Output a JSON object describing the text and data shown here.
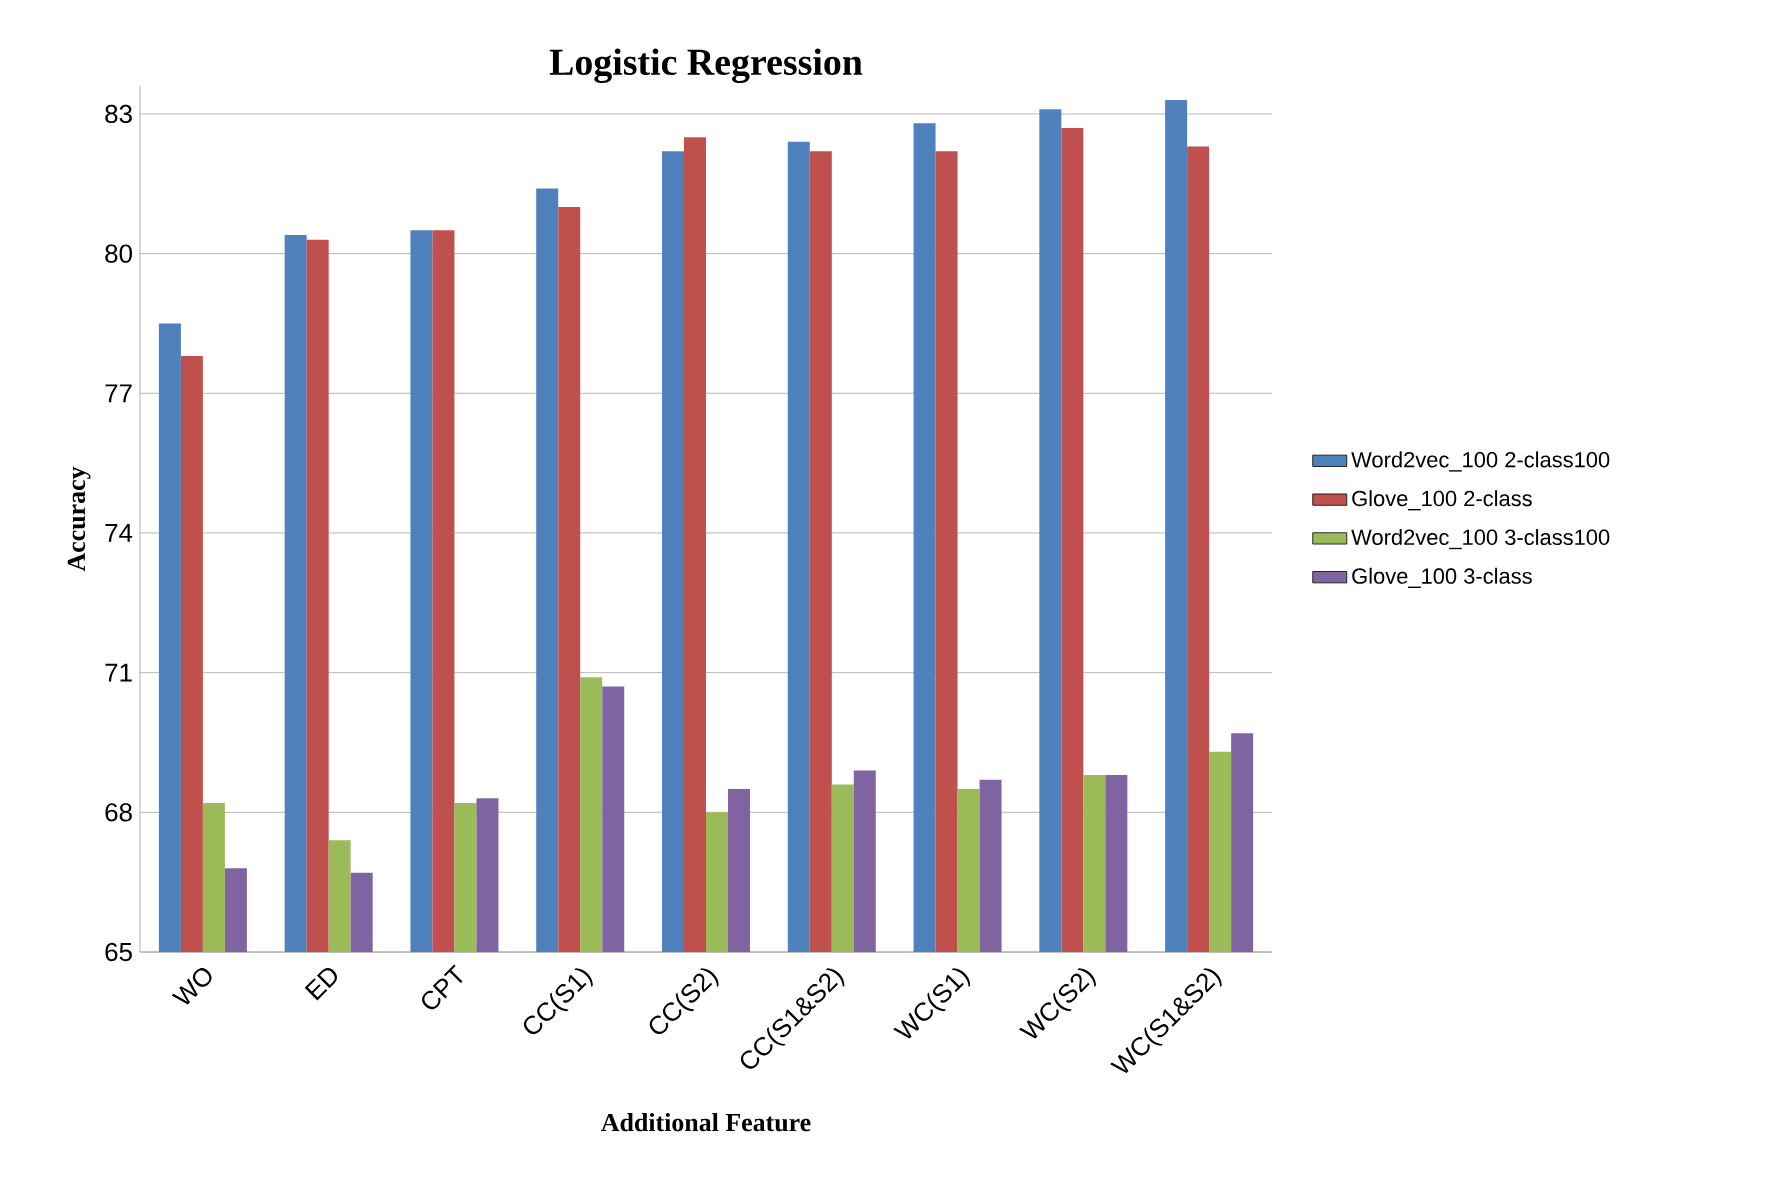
{
  "chart_data": {
    "type": "bar",
    "title": "Logistic Regression",
    "xlabel": "Additional Feature",
    "ylabel": "Accuracy",
    "categories": [
      "WO",
      "ED",
      "CPT",
      "CC(S1)",
      "CC(S2)",
      "CC(S1&S2)",
      "WC(S1)",
      "WC(S2)",
      "WC(S1&S2)"
    ],
    "series": [
      {
        "name": "Word2vec_100 2-class100",
        "color": "#4f81bd",
        "values": [
          78.5,
          80.4,
          80.5,
          81.4,
          82.2,
          82.4,
          82.8,
          83.1,
          83.3
        ]
      },
      {
        "name": "Glove_100 2-class",
        "color": "#c0504d",
        "values": [
          77.8,
          80.3,
          80.5,
          81.0,
          82.5,
          82.2,
          82.2,
          82.7,
          82.3
        ]
      },
      {
        "name": "Word2vec_100 3-class100",
        "color": "#9bbb59",
        "values": [
          68.2,
          67.4,
          68.2,
          70.9,
          68.0,
          68.6,
          68.5,
          68.8,
          69.3
        ]
      },
      {
        "name": "Glove_100 3-class",
        "color": "#8064a2",
        "values": [
          66.8,
          66.7,
          68.3,
          70.7,
          68.5,
          68.9,
          68.7,
          68.8,
          69.7
        ]
      }
    ],
    "ylim": [
      65,
      83.6
    ],
    "yticks": [
      65,
      68,
      71,
      74,
      77,
      80,
      83
    ],
    "grid": "y",
    "legend": "right"
  }
}
